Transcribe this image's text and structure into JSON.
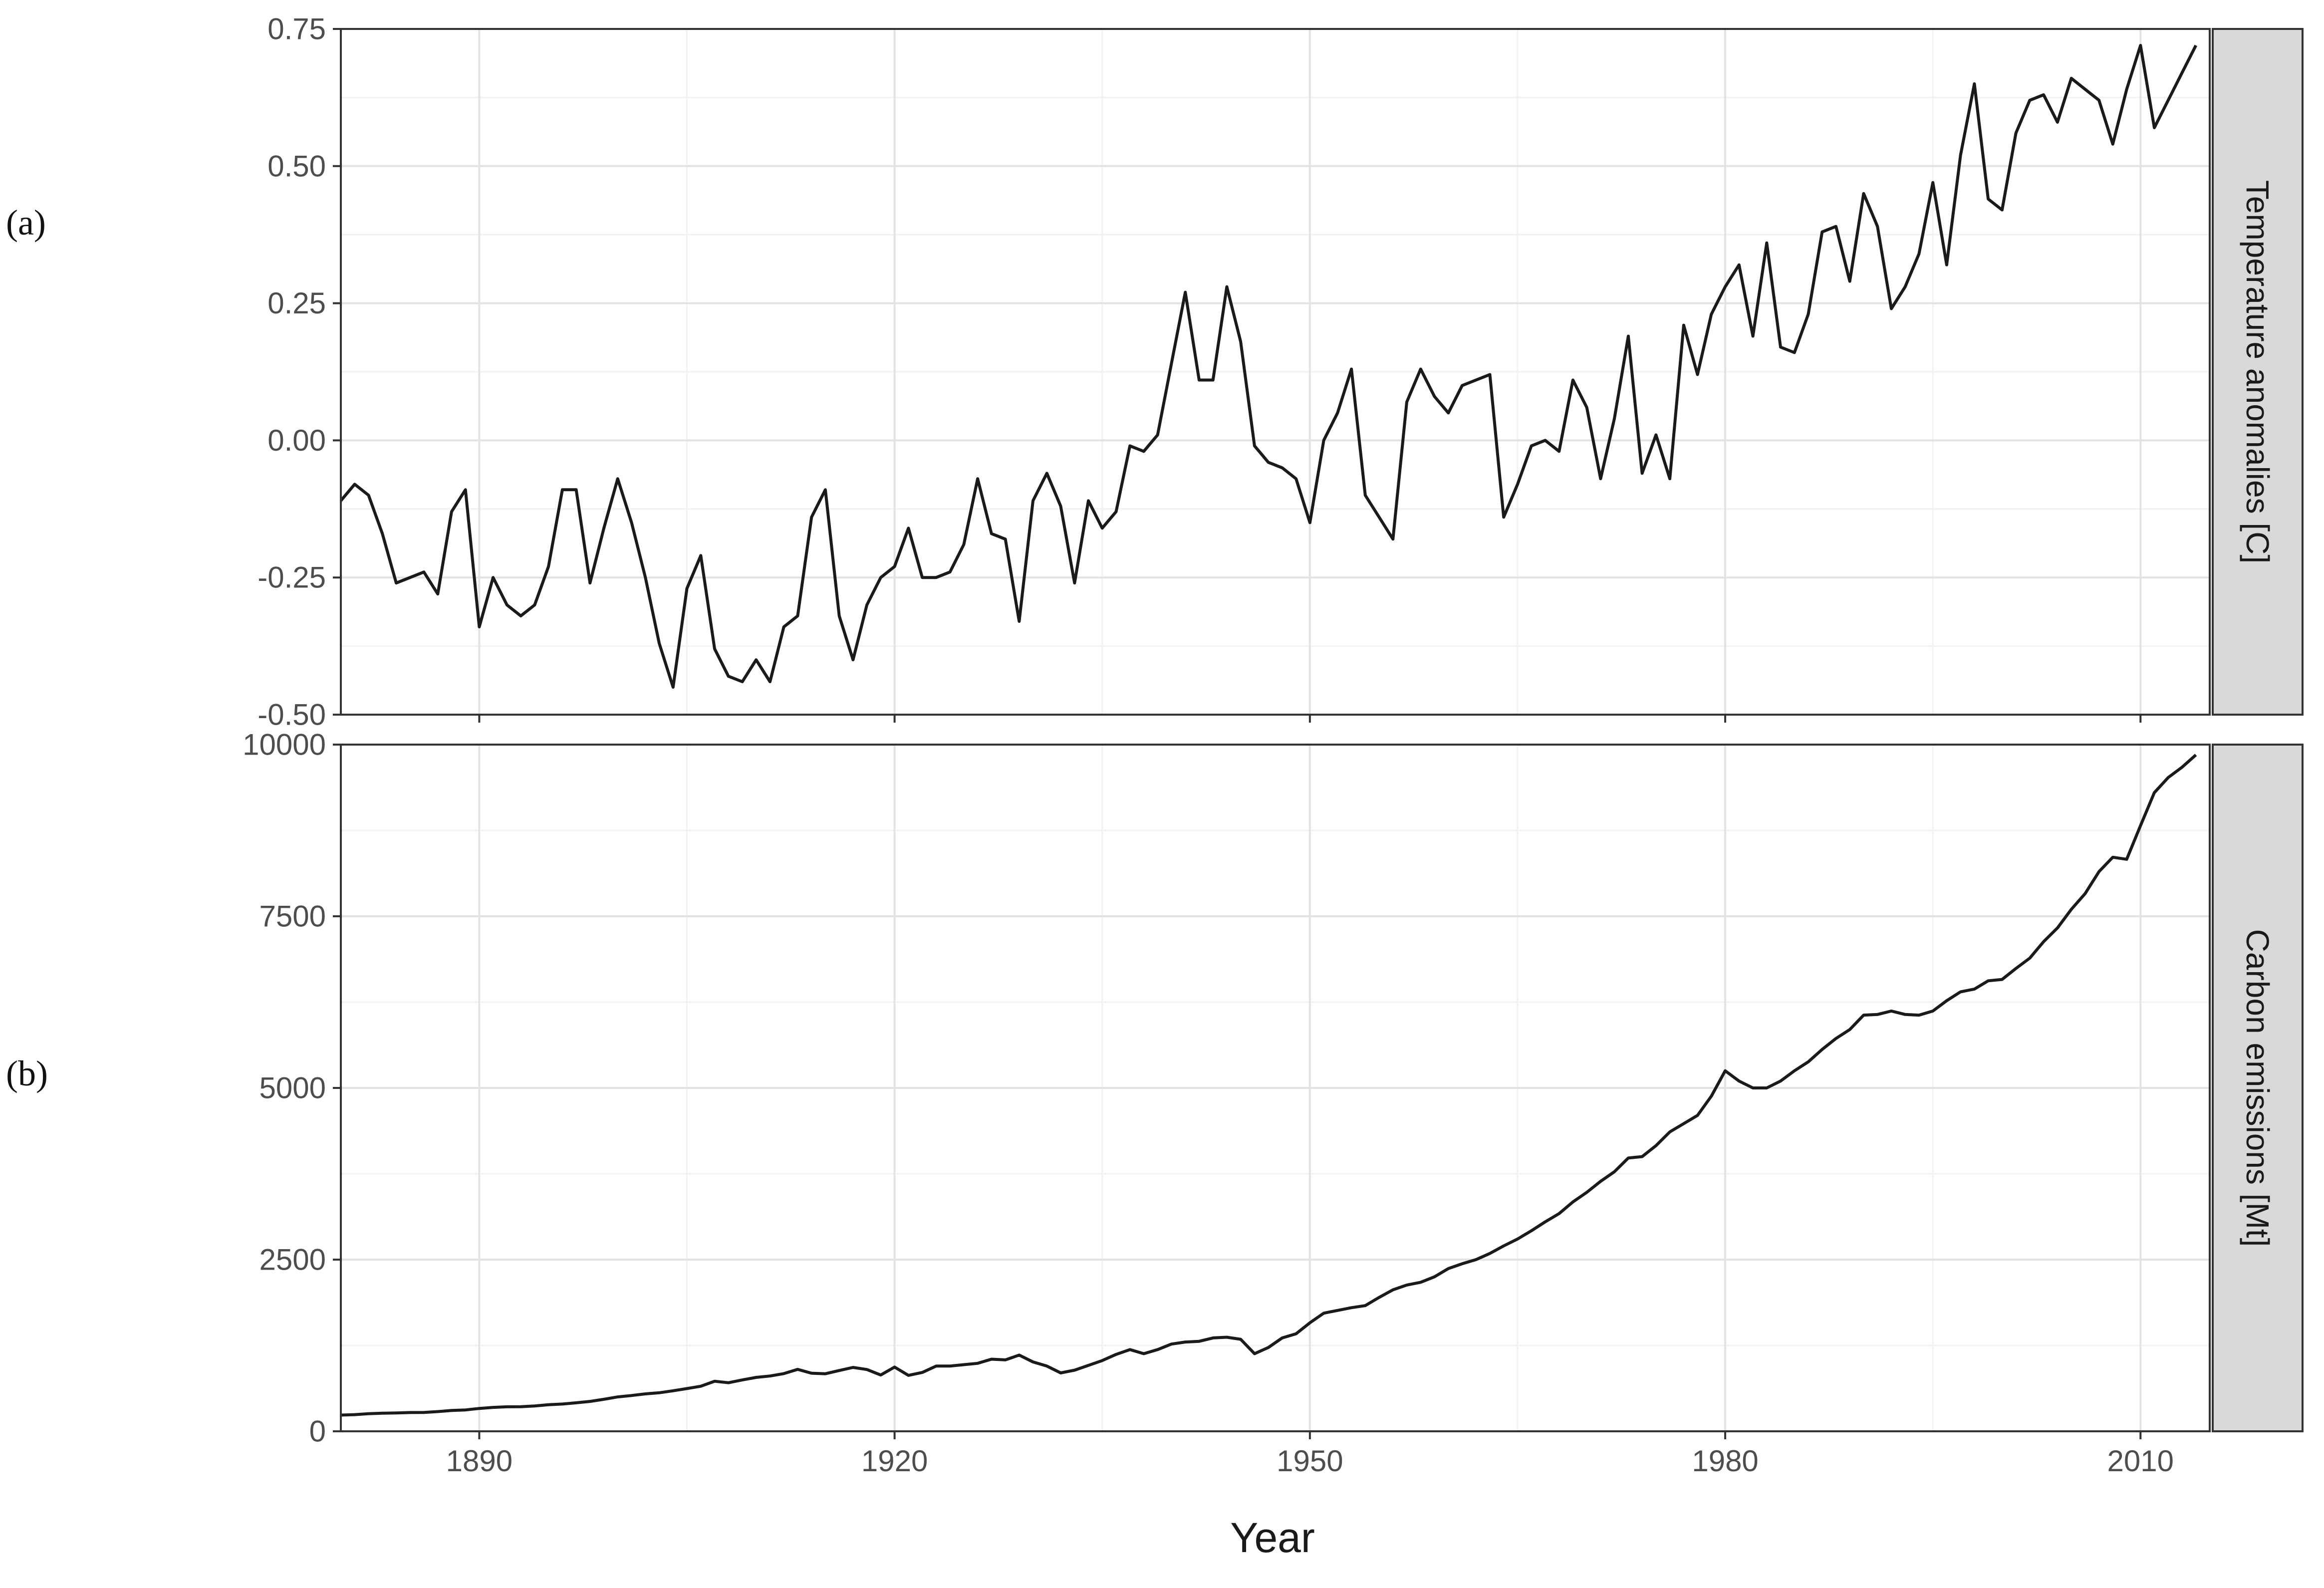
{
  "figure": {
    "panel_labels": [
      "(a)",
      "(b)"
    ],
    "xlabel": "Year"
  },
  "colors": {
    "line": "#1a1a1a",
    "grid_major": "#e3e3e3",
    "grid_minor": "#f2f2f2",
    "panel_border": "#333333",
    "strip_fill": "#d9d9d9",
    "tick_text": "#4d4d4d"
  },
  "chart_data": [
    {
      "type": "line",
      "strip_label": "Temperature anomalies [C]",
      "xlabel": "Year",
      "ylabel": "",
      "xlim": [
        1880,
        2015
      ],
      "ylim": [
        -0.5,
        0.75
      ],
      "x_ticks": [
        1890,
        1920,
        1950,
        1980,
        2010
      ],
      "y_ticks": [
        -0.5,
        -0.25,
        0.0,
        0.25,
        0.5,
        0.75
      ],
      "y_tick_labels": [
        "-0.50",
        "-0.25",
        "0.00",
        "0.25",
        "0.50",
        "0.75"
      ],
      "x_tick_labels_visible": false,
      "grid": true,
      "series": [
        {
          "x": [
            1880,
            1881,
            1882,
            1883,
            1884,
            1885,
            1886,
            1887,
            1888,
            1889,
            1890,
            1891,
            1892,
            1893,
            1894,
            1895,
            1896,
            1897,
            1898,
            1899,
            1900,
            1901,
            1902,
            1903,
            1904,
            1905,
            1906,
            1907,
            1908,
            1909,
            1910,
            1911,
            1912,
            1913,
            1914,
            1915,
            1916,
            1917,
            1918,
            1919,
            1920,
            1921,
            1922,
            1923,
            1924,
            1925,
            1926,
            1927,
            1928,
            1929,
            1930,
            1931,
            1932,
            1933,
            1934,
            1935,
            1936,
            1937,
            1938,
            1939,
            1940,
            1941,
            1942,
            1943,
            1944,
            1945,
            1946,
            1947,
            1948,
            1949,
            1950,
            1951,
            1952,
            1953,
            1954,
            1955,
            1956,
            1957,
            1958,
            1959,
            1960,
            1961,
            1962,
            1963,
            1964,
            1965,
            1966,
            1967,
            1968,
            1969,
            1970,
            1971,
            1972,
            1973,
            1974,
            1975,
            1976,
            1977,
            1978,
            1979,
            1980,
            1981,
            1982,
            1983,
            1984,
            1985,
            1986,
            1987,
            1988,
            1989,
            1990,
            1991,
            1992,
            1993,
            1994,
            1995,
            1996,
            1997,
            1998,
            1999,
            2000,
            2001,
            2002,
            2003,
            2004,
            2005,
            2006,
            2007,
            2008,
            2009,
            2010,
            2011,
            2012,
            2013,
            2014
          ],
          "y": [
            -0.11,
            -0.08,
            -0.1,
            -0.17,
            -0.26,
            -0.25,
            -0.24,
            -0.28,
            -0.13,
            -0.09,
            -0.34,
            -0.25,
            -0.3,
            -0.32,
            -0.3,
            -0.23,
            -0.09,
            -0.09,
            -0.26,
            -0.16,
            -0.07,
            -0.15,
            -0.25,
            -0.37,
            -0.45,
            -0.27,
            -0.21,
            -0.38,
            -0.43,
            -0.44,
            -0.4,
            -0.44,
            -0.34,
            -0.32,
            -0.14,
            -0.09,
            -0.32,
            -0.4,
            -0.3,
            -0.25,
            -0.23,
            -0.16,
            -0.25,
            -0.25,
            -0.24,
            -0.19,
            -0.07,
            -0.17,
            -0.18,
            -0.33,
            -0.11,
            -0.06,
            -0.12,
            -0.26,
            -0.11,
            -0.16,
            -0.13,
            -0.01,
            -0.02,
            0.01,
            0.14,
            0.27,
            0.11,
            0.11,
            0.28,
            0.18,
            -0.01,
            -0.04,
            -0.05,
            -0.07,
            -0.15,
            0.0,
            0.05,
            0.13,
            -0.1,
            -0.14,
            -0.18,
            0.07,
            0.13,
            0.08,
            0.05,
            0.1,
            0.11,
            0.12,
            -0.14,
            -0.08,
            -0.01,
            0.0,
            -0.02,
            0.11,
            0.06,
            -0.07,
            0.04,
            0.19,
            -0.06,
            0.01,
            -0.07,
            0.21,
            0.12,
            0.23,
            0.28,
            0.32,
            0.19,
            0.36,
            0.17,
            0.16,
            0.23,
            0.38,
            0.39,
            0.29,
            0.45,
            0.39,
            0.24,
            0.28,
            0.34,
            0.47,
            0.32,
            0.52,
            0.65,
            0.44,
            0.42,
            0.56,
            0.62,
            0.63,
            0.58,
            0.66,
            0.64,
            0.62,
            0.54,
            0.64,
            0.72,
            0.57,
            0.62,
            0.67,
            0.72
          ]
        }
      ]
    },
    {
      "type": "line",
      "strip_label": "Carbon emissions [Mt]",
      "xlabel": "Year",
      "ylabel": "",
      "xlim": [
        1880,
        2015
      ],
      "ylim": [
        0,
        10000
      ],
      "x_ticks": [
        1890,
        1920,
        1950,
        1980,
        2010
      ],
      "x_tick_labels": [
        "1890",
        "1920",
        "1950",
        "1980",
        "2010"
      ],
      "y_ticks": [
        0,
        2500,
        5000,
        7500,
        10000
      ],
      "y_tick_labels": [
        "0",
        "2500",
        "5000",
        "7500",
        "10000"
      ],
      "grid": true,
      "series": [
        {
          "x": [
            1880,
            1881,
            1882,
            1883,
            1884,
            1885,
            1886,
            1887,
            1888,
            1889,
            1890,
            1891,
            1892,
            1893,
            1894,
            1895,
            1896,
            1897,
            1898,
            1899,
            1900,
            1901,
            1902,
            1903,
            1904,
            1905,
            1906,
            1907,
            1908,
            1909,
            1910,
            1911,
            1912,
            1913,
            1914,
            1915,
            1916,
            1917,
            1918,
            1919,
            1920,
            1921,
            1922,
            1923,
            1924,
            1925,
            1926,
            1927,
            1928,
            1929,
            1930,
            1931,
            1932,
            1933,
            1934,
            1935,
            1936,
            1937,
            1938,
            1939,
            1940,
            1941,
            1942,
            1943,
            1944,
            1945,
            1946,
            1947,
            1948,
            1949,
            1950,
            1951,
            1952,
            1953,
            1954,
            1955,
            1956,
            1957,
            1958,
            1959,
            1960,
            1961,
            1962,
            1963,
            1964,
            1965,
            1966,
            1967,
            1968,
            1969,
            1970,
            1971,
            1972,
            1973,
            1974,
            1975,
            1976,
            1977,
            1978,
            1979,
            1980,
            1981,
            1982,
            1983,
            1984,
            1985,
            1986,
            1987,
            1988,
            1989,
            1990,
            1991,
            1992,
            1993,
            1994,
            1995,
            1996,
            1997,
            1998,
            1999,
            2000,
            2001,
            2002,
            2003,
            2004,
            2005,
            2006,
            2007,
            2008,
            2009,
            2010,
            2011,
            2012,
            2013,
            2014
          ],
          "y": [
            236,
            243,
            256,
            264,
            267,
            273,
            275,
            287,
            303,
            311,
            333,
            348,
            357,
            358,
            369,
            387,
            397,
            415,
            435,
            466,
            501,
            521,
            545,
            561,
            590,
            622,
            656,
            729,
            707,
            748,
            785,
            805,
            840,
            902,
            846,
            838,
            885,
            930,
            900,
            820,
            935,
            815,
            857,
            950,
            950,
            970,
            990,
            1050,
            1040,
            1110,
            1010,
            950,
            850,
            890,
            960,
            1030,
            1120,
            1190,
            1130,
            1190,
            1270,
            1300,
            1310,
            1360,
            1370,
            1340,
            1130,
            1220,
            1360,
            1420,
            1580,
            1720,
            1760,
            1800,
            1830,
            1950,
            2060,
            2130,
            2170,
            2250,
            2370,
            2440,
            2500,
            2590,
            2700,
            2800,
            2920,
            3050,
            3170,
            3340,
            3480,
            3640,
            3780,
            3980,
            4000,
            4160,
            4360,
            4480,
            4600,
            4880,
            5250,
            5100,
            5000,
            5000,
            5100,
            5250,
            5380,
            5560,
            5720,
            5850,
            6060,
            6070,
            6120,
            6070,
            6060,
            6120,
            6270,
            6400,
            6440,
            6560,
            6580,
            6740,
            6890,
            7130,
            7330,
            7600,
            7830,
            8150,
            8360,
            8330,
            8820,
            9300,
            9520,
            9670,
            9850
          ]
        }
      ]
    }
  ]
}
